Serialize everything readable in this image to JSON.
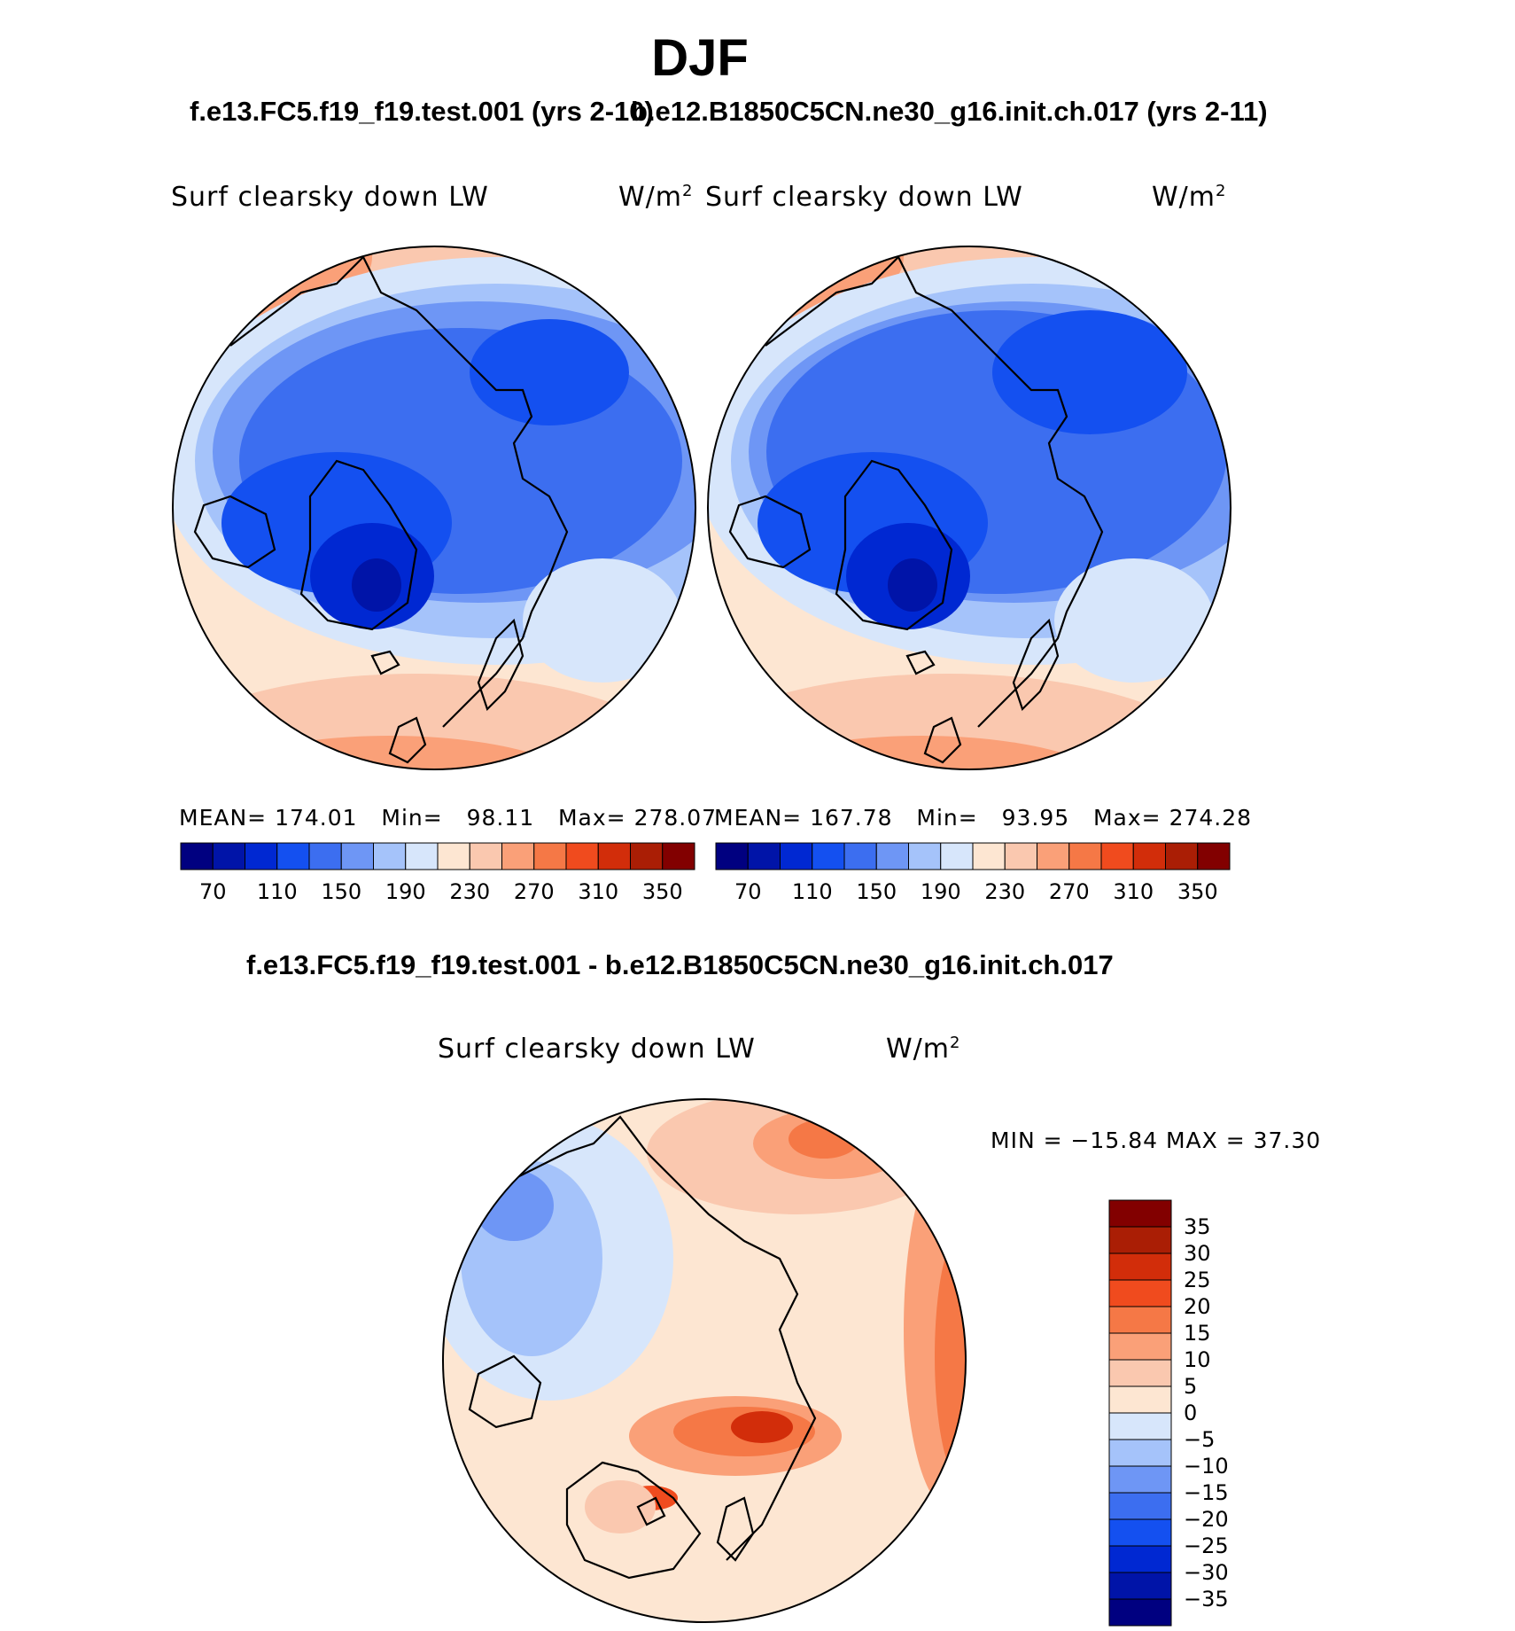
{
  "title": "DJF",
  "panels": {
    "left": {
      "case_title": "f.e13.FC5.f19_f19.test.001 (yrs 2-10)",
      "field_label": "Surf clearsky down LW",
      "units_base": "W/m",
      "units_exp": "2",
      "mean_label": "MEAN=",
      "mean_value": "174.01",
      "min_label": "Min=",
      "min_value": "98.11",
      "max_label": "Max=",
      "max_value": "278.07"
    },
    "right": {
      "case_title": "b.e12.B1850C5CN.ne30_g16.init.ch.017 (yrs 2-11)",
      "field_label": "Surf clearsky down LW",
      "units_base": "W/m",
      "units_exp": "2",
      "mean_label": "MEAN=",
      "mean_value": "167.78",
      "min_label": "Min=",
      "min_value": "93.95",
      "max_label": "Max=",
      "max_value": "274.28"
    },
    "diff": {
      "title": "f.e13.FC5.f19_f19.test.001 - b.e12.B1850C5CN.ne30_g16.init.ch.017",
      "field_label": "Surf clearsky down LW",
      "units_base": "W/m",
      "units_exp": "2",
      "minmax_text": "MIN = −15.84 MAX =   37.30"
    }
  },
  "colorbar_abs": {
    "colors": [
      "#000080",
      "#0014a8",
      "#0028d2",
      "#1450f0",
      "#3c6ef0",
      "#6e96f5",
      "#a5c3fa",
      "#d7e6fb",
      "#fde6d2",
      "#fac8af",
      "#faa078",
      "#f57846",
      "#f04b1e",
      "#d22d0a",
      "#aa1e05",
      "#820000"
    ],
    "tick_labels": [
      "70",
      "110",
      "150",
      "190",
      "230",
      "270",
      "310",
      "350"
    ]
  },
  "colorbar_diff": {
    "colors": [
      "#820000",
      "#aa1e05",
      "#d22d0a",
      "#f04b1e",
      "#f57846",
      "#faa078",
      "#fac8af",
      "#fde6d2",
      "#d7e6fb",
      "#a5c3fa",
      "#6e96f5",
      "#3c6ef0",
      "#1450f0",
      "#0028d2",
      "#0014a8",
      "#000080"
    ],
    "tick_labels": [
      "35",
      "30",
      "25",
      "20",
      "15",
      "10",
      "5",
      "0",
      "−5",
      "−10",
      "−15",
      "−20",
      "−25",
      "−30",
      "−35"
    ]
  }
}
